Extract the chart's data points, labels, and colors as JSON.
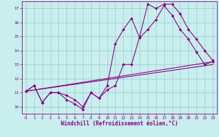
{
  "xlabel": "Windchill (Refroidissement éolien,°C)",
  "xlim": [
    -0.5,
    23.5
  ],
  "ylim": [
    9.5,
    17.5
  ],
  "xticks": [
    0,
    1,
    2,
    3,
    4,
    5,
    6,
    7,
    8,
    9,
    10,
    11,
    12,
    13,
    14,
    15,
    16,
    17,
    18,
    19,
    20,
    21,
    22,
    23
  ],
  "yticks": [
    10,
    11,
    12,
    13,
    14,
    15,
    16,
    17
  ],
  "bg_color": "#c8eeee",
  "line_color": "#880088",
  "grid_color": "#99cccc",
  "curve1_x": [
    0,
    1,
    2,
    3,
    4,
    5,
    6,
    7,
    8,
    9,
    10,
    11,
    12,
    13,
    14,
    15,
    16,
    17,
    18,
    19,
    20,
    21,
    22,
    23
  ],
  "curve1_y": [
    11.1,
    11.5,
    10.3,
    11.0,
    11.0,
    10.5,
    10.2,
    9.8,
    11.0,
    10.6,
    11.2,
    11.5,
    13.0,
    13.0,
    15.0,
    17.3,
    17.0,
    17.3,
    17.3,
    16.6,
    15.5,
    14.8,
    14.0,
    13.3
  ],
  "curve2_x": [
    0,
    1,
    2,
    3,
    4,
    5,
    6,
    7,
    8,
    9,
    10,
    11,
    12,
    13,
    14,
    15,
    16,
    17,
    18,
    19,
    20,
    21,
    22,
    23
  ],
  "curve2_y": [
    11.1,
    11.5,
    10.3,
    11.0,
    11.0,
    10.8,
    10.5,
    10.0,
    11.0,
    10.6,
    11.5,
    14.5,
    15.5,
    16.3,
    14.9,
    15.5,
    16.2,
    17.2,
    16.5,
    15.5,
    14.8,
    13.9,
    13.0,
    13.2
  ],
  "curve3_x": [
    0,
    23
  ],
  "curve3_y": [
    11.1,
    13.2
  ],
  "curve4_x": [
    0,
    23
  ],
  "curve4_y": [
    11.1,
    13.0
  ]
}
